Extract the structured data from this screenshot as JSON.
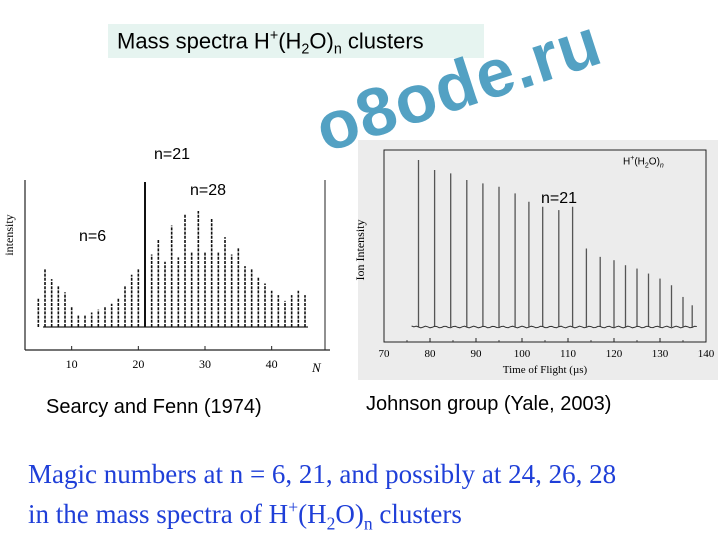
{
  "title": {
    "text": "Mass spectra H",
    "sup": "+",
    "paren_open": "(H",
    "sub2": "2",
    "o": "O)",
    "subn": "n",
    "rest": " clusters"
  },
  "watermark": "o8ode.ru",
  "captions": {
    "left": "Searcy and Fenn (1974)",
    "right": "Johnson group (Yale, 2003)"
  },
  "bottom": {
    "line1": "Magic numbers at n = 6, 21, and possibly at 24, 26, 28",
    "line2_a": "in the mass spectra of H",
    "line2_sup": "+",
    "line2_b": "(H",
    "line2_sub2": "2",
    "line2_c": "O)",
    "line2_subn": "n",
    "line2_d": " clusters"
  },
  "chart_data": [
    {
      "type": "bar",
      "title": "",
      "xlabel": "N",
      "ylabel": "intensity",
      "xlim": [
        3,
        48
      ],
      "ylim": [
        0,
        100
      ],
      "xticks": [
        10,
        20,
        30,
        40
      ],
      "annotations": [
        {
          "text": "n=6",
          "x": 6,
          "y": 58
        },
        {
          "text": "n=21",
          "x": 21,
          "y": 100
        },
        {
          "text": "n=28",
          "x": 28,
          "y": 80
        }
      ],
      "x": [
        5,
        6,
        7,
        8,
        9,
        10,
        11,
        12,
        13,
        14,
        15,
        16,
        17,
        18,
        19,
        20,
        21,
        22,
        23,
        24,
        25,
        26,
        27,
        28,
        29,
        30,
        31,
        32,
        33,
        34,
        35,
        36,
        37,
        38,
        39,
        40,
        41,
        42,
        43,
        44,
        45
      ],
      "values": [
        20,
        40,
        33,
        28,
        24,
        14,
        8,
        8,
        10,
        12,
        14,
        16,
        20,
        28,
        36,
        40,
        100,
        50,
        60,
        45,
        70,
        48,
        78,
        52,
        80,
        52,
        75,
        52,
        62,
        50,
        55,
        42,
        40,
        34,
        30,
        25,
        22,
        18,
        22,
        25,
        22
      ]
    },
    {
      "type": "bar",
      "title": "",
      "legend_text": "H+(H2O)n",
      "legend": "top-right",
      "xlabel": "Time of Flight (µs)",
      "ylabel": "Ion Intensity",
      "xlim": [
        70,
        140
      ],
      "ylim": [
        0,
        100
      ],
      "xticks": [
        70,
        80,
        90,
        100,
        110,
        120,
        130,
        140
      ],
      "annotations": [
        {
          "text": "n=21",
          "x": 108,
          "y": 72
        }
      ],
      "x": [
        77.5,
        81,
        84.5,
        88,
        91.5,
        95,
        98.5,
        101.5,
        104.5,
        108,
        111,
        114,
        117,
        120,
        122.5,
        125,
        127.5,
        130,
        132.5,
        135,
        137
      ],
      "values": [
        100,
        94,
        92,
        88,
        86,
        84,
        80,
        75,
        72,
        70,
        72,
        47,
        42,
        40,
        37,
        35,
        32,
        29,
        25,
        18,
        13
      ]
    }
  ]
}
